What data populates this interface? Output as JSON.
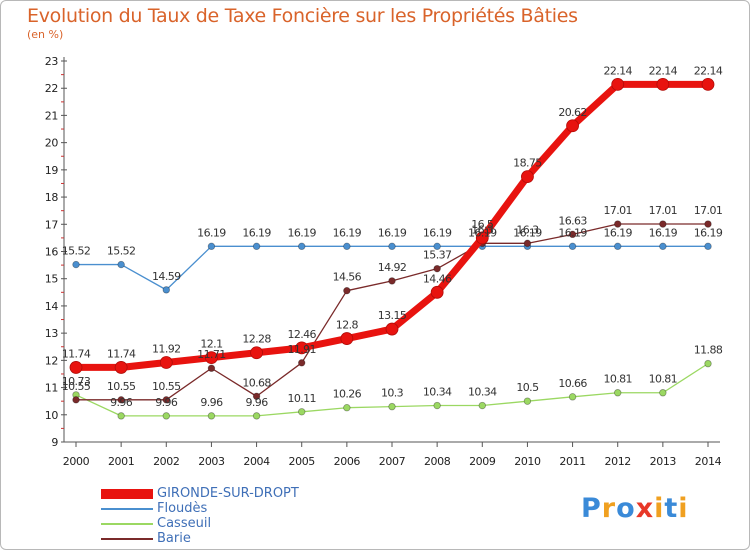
{
  "header": {
    "title": "Evolution du Taux de Taxe Foncière sur les Propriétés Bâties",
    "subtitle": "(en %)"
  },
  "chart_data": {
    "type": "line",
    "title": "Evolution du Taux de Taxe Foncière sur les Propriétés Bâties",
    "subtitle": "(en %)",
    "xlabel": "",
    "ylabel": "",
    "x": [
      "2000",
      "2001",
      "2002",
      "2003",
      "2004",
      "2005",
      "2006",
      "2007",
      "2008",
      "2009",
      "2010",
      "2011",
      "2012",
      "2013",
      "2014"
    ],
    "ylim": [
      9,
      23
    ],
    "yticks": [
      9,
      10,
      11,
      12,
      13,
      14,
      15,
      16,
      17,
      18,
      19,
      20,
      21,
      22,
      23
    ],
    "grid": false,
    "legend_position": "bottom-left",
    "series": [
      {
        "name": "GIRONDE-SUR-DROPT",
        "color": "#e8130f",
        "values": [
          11.74,
          11.74,
          11.92,
          12.1,
          12.28,
          12.46,
          12.8,
          13.15,
          14.5,
          16.5,
          18.75,
          20.62,
          22.14,
          22.14,
          22.14
        ],
        "labels": [
          "11.74",
          "11.74",
          "11.92",
          "12.1",
          "12.28",
          "12.46",
          "12.8",
          "13.15",
          "14.46",
          "16.5",
          "18.75",
          "20.62",
          "22.14",
          "22.14",
          "22.14"
        ]
      },
      {
        "name": "Floudès",
        "color": "#4a8fcf",
        "values": [
          15.52,
          15.52,
          14.59,
          16.19,
          16.19,
          16.19,
          16.19,
          16.19,
          16.19,
          16.19,
          16.19,
          16.19,
          16.19,
          16.19,
          16.19
        ],
        "labels": [
          "15.52",
          "15.52",
          "14.59",
          "16.19",
          "16.19",
          "16.19",
          "16.19",
          "16.19",
          "16.19",
          "16.19",
          "16.19",
          "16.19",
          "16.19",
          "16.19",
          "16.19"
        ]
      },
      {
        "name": "Casseuil",
        "color": "#9bd862",
        "values": [
          10.73,
          9.96,
          9.96,
          9.96,
          9.96,
          10.11,
          10.26,
          10.3,
          10.34,
          10.34,
          10.5,
          10.66,
          10.81,
          10.81,
          11.88
        ],
        "labels": [
          "10.73",
          "9.96",
          "9.96",
          "9.96",
          "9.96",
          "10.11",
          "10.26",
          "10.3",
          "10.34",
          "10.34",
          "10.5",
          "10.66",
          "10.81",
          "10.81",
          "11.88"
        ]
      },
      {
        "name": "Barie",
        "color": "#7a2a2a",
        "values": [
          10.55,
          10.55,
          10.55,
          11.71,
          10.68,
          11.91,
          14.56,
          14.92,
          15.37,
          16.3,
          16.3,
          16.63,
          17.01,
          17.01,
          17.01
        ],
        "labels": [
          "10.55",
          "10.55",
          "10.55",
          "11.71",
          "10.68",
          "11.91",
          "14.56",
          "14.92",
          "15.37",
          "16.3",
          "16.3",
          "16.63",
          "17.01",
          "17.01",
          "17.01"
        ]
      }
    ]
  },
  "logo": {
    "letters": [
      "P",
      "r",
      "o",
      "x",
      "i",
      "t",
      "i"
    ],
    "colors": [
      "#3a8ad8",
      "#f0a020",
      "#3a8ad8",
      "#e83828",
      "#f0a020",
      "#3a8ad8",
      "#f0a020"
    ]
  }
}
